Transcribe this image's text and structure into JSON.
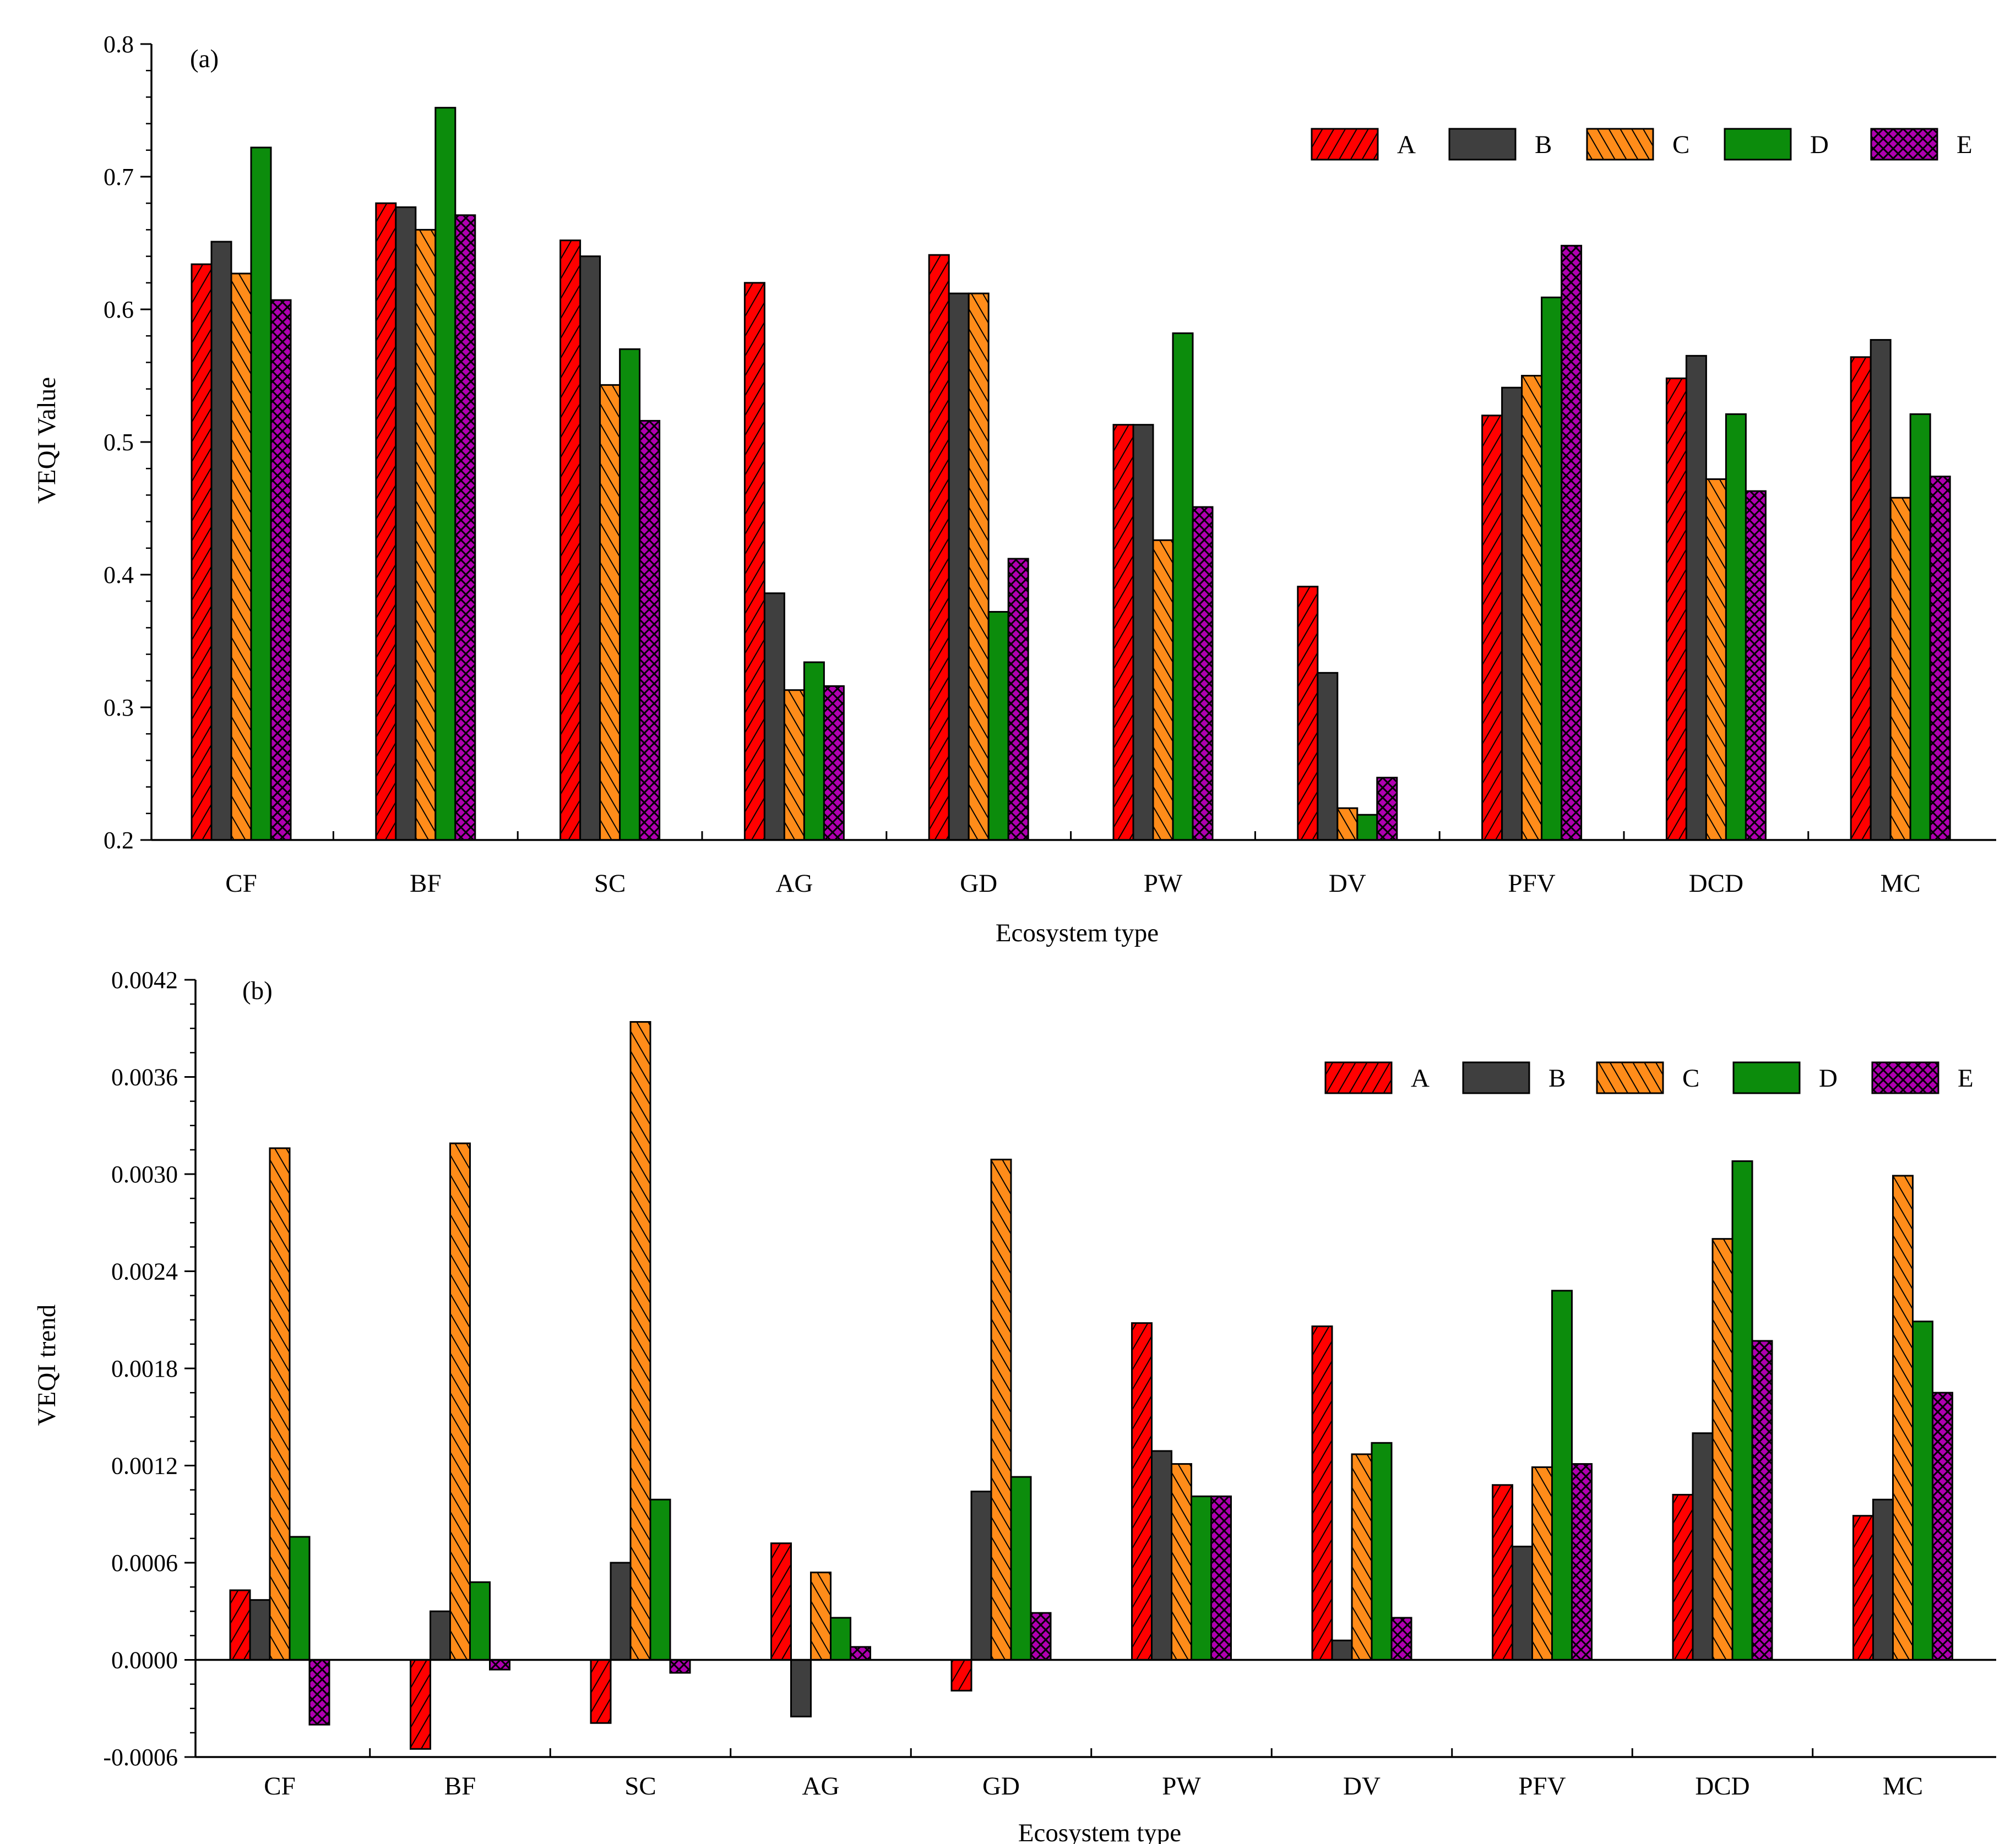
{
  "colors": {
    "A": "#ff0000",
    "B": "#3f3f3f",
    "C": "#ff8c1a",
    "D": "#0c8c0c",
    "E": "#b000b0"
  },
  "patterns": {
    "A": "diag-right",
    "B": "solid",
    "C": "diag-left",
    "D": "solid",
    "E": "crosshatch"
  },
  "chart_data": [
    {
      "type": "bar",
      "panel_label": "(a)",
      "xlabel": "Ecosystem type",
      "ylabel": "VEQI  Value",
      "categories": [
        "CF",
        "BF",
        "SC",
        "AG",
        "GD",
        "PW",
        "DV",
        "PFV",
        "DCD",
        "MC"
      ],
      "ylim": [
        0.2,
        0.8
      ],
      "yticks": [
        0.2,
        0.3,
        0.4,
        0.5,
        0.6,
        0.7,
        0.8
      ],
      "ytick_labels": [
        "0.2",
        "0.3",
        "0.4",
        "0.5",
        "0.6",
        "0.7",
        "0.8"
      ],
      "legend": "top-right",
      "series": [
        {
          "name": "A",
          "values": [
            0.634,
            0.68,
            0.652,
            0.62,
            0.641,
            0.513,
            0.391,
            0.52,
            0.548,
            0.564
          ]
        },
        {
          "name": "B",
          "values": [
            0.651,
            0.677,
            0.64,
            0.386,
            0.612,
            0.513,
            0.326,
            0.541,
            0.565,
            0.577
          ]
        },
        {
          "name": "C",
          "values": [
            0.627,
            0.66,
            0.543,
            0.313,
            0.612,
            0.426,
            0.224,
            0.55,
            0.472,
            0.458
          ]
        },
        {
          "name": "D",
          "values": [
            0.722,
            0.752,
            0.57,
            0.334,
            0.372,
            0.582,
            0.219,
            0.609,
            0.521,
            0.521
          ]
        },
        {
          "name": "E",
          "values": [
            0.607,
            0.671,
            0.516,
            0.316,
            0.412,
            0.451,
            0.247,
            0.648,
            0.463,
            0.474
          ]
        }
      ]
    },
    {
      "type": "bar",
      "panel_label": "(b)",
      "xlabel": "Ecosystem type",
      "ylabel": "VEQI  trend",
      "categories": [
        "CF",
        "BF",
        "SC",
        "AG",
        "GD",
        "PW",
        "DV",
        "PFV",
        "DCD",
        "MC"
      ],
      "ylim": [
        -0.0006,
        0.0042
      ],
      "yticks": [
        -0.0006,
        0.0,
        0.0006,
        0.0012,
        0.0018,
        0.0024,
        0.003,
        0.0036,
        0.0042
      ],
      "ytick_labels": [
        "-0.0006",
        "0.0000",
        "0.0006",
        "0.0012",
        "0.0018",
        "0.0024",
        "0.0030",
        "0.0036",
        "0.0042"
      ],
      "legend": "top-right",
      "series": [
        {
          "name": "A",
          "values": [
            0.00043,
            -0.00055,
            -0.00039,
            0.00072,
            -0.00019,
            0.00208,
            0.00206,
            0.00108,
            0.00102,
            0.00089
          ]
        },
        {
          "name": "B",
          "values": [
            0.00037,
            0.0003,
            0.0006,
            -0.00035,
            0.00104,
            0.00129,
            0.00012,
            0.0007,
            0.0014,
            0.00099
          ]
        },
        {
          "name": "C",
          "values": [
            0.00316,
            0.00319,
            0.00394,
            0.00054,
            0.00309,
            0.00121,
            0.00127,
            0.00119,
            0.0026,
            0.00299
          ]
        },
        {
          "name": "D",
          "values": [
            0.00076,
            0.00048,
            0.00099,
            0.00026,
            0.00113,
            0.00101,
            0.00134,
            0.00228,
            0.00308,
            0.00209
          ]
        },
        {
          "name": "E",
          "values": [
            -0.0004,
            -6e-05,
            -8e-05,
            8e-05,
            0.00029,
            0.00101,
            0.00026,
            0.00121,
            0.00197,
            0.00165
          ]
        }
      ]
    }
  ]
}
